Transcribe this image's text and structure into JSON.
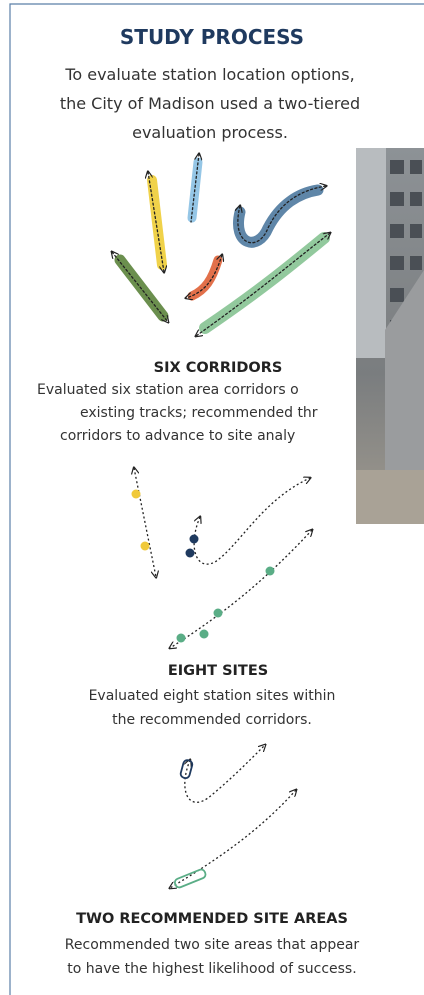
{
  "header": {
    "title": "STUDY PROCESS",
    "intro": [
      "To evaluate station location options,",
      "the City of Madison used a two-tiered",
      "evaluation process."
    ]
  },
  "sections": [
    {
      "heading": "SIX CORRIDORS",
      "lines": [
        "Evaluated six station area corridors o",
        "existing tracks; recommended thr",
        "corridors to advance to site analy"
      ]
    },
    {
      "heading": "EIGHT SITES",
      "lines": [
        "Evaluated eight station sites within",
        "the recommended corridors."
      ]
    },
    {
      "heading": "TWO RECOMMENDED SITE AREAS",
      "lines": [
        "Recommended two site areas that appear",
        "to have the highest likelihood of success."
      ]
    }
  ]
}
